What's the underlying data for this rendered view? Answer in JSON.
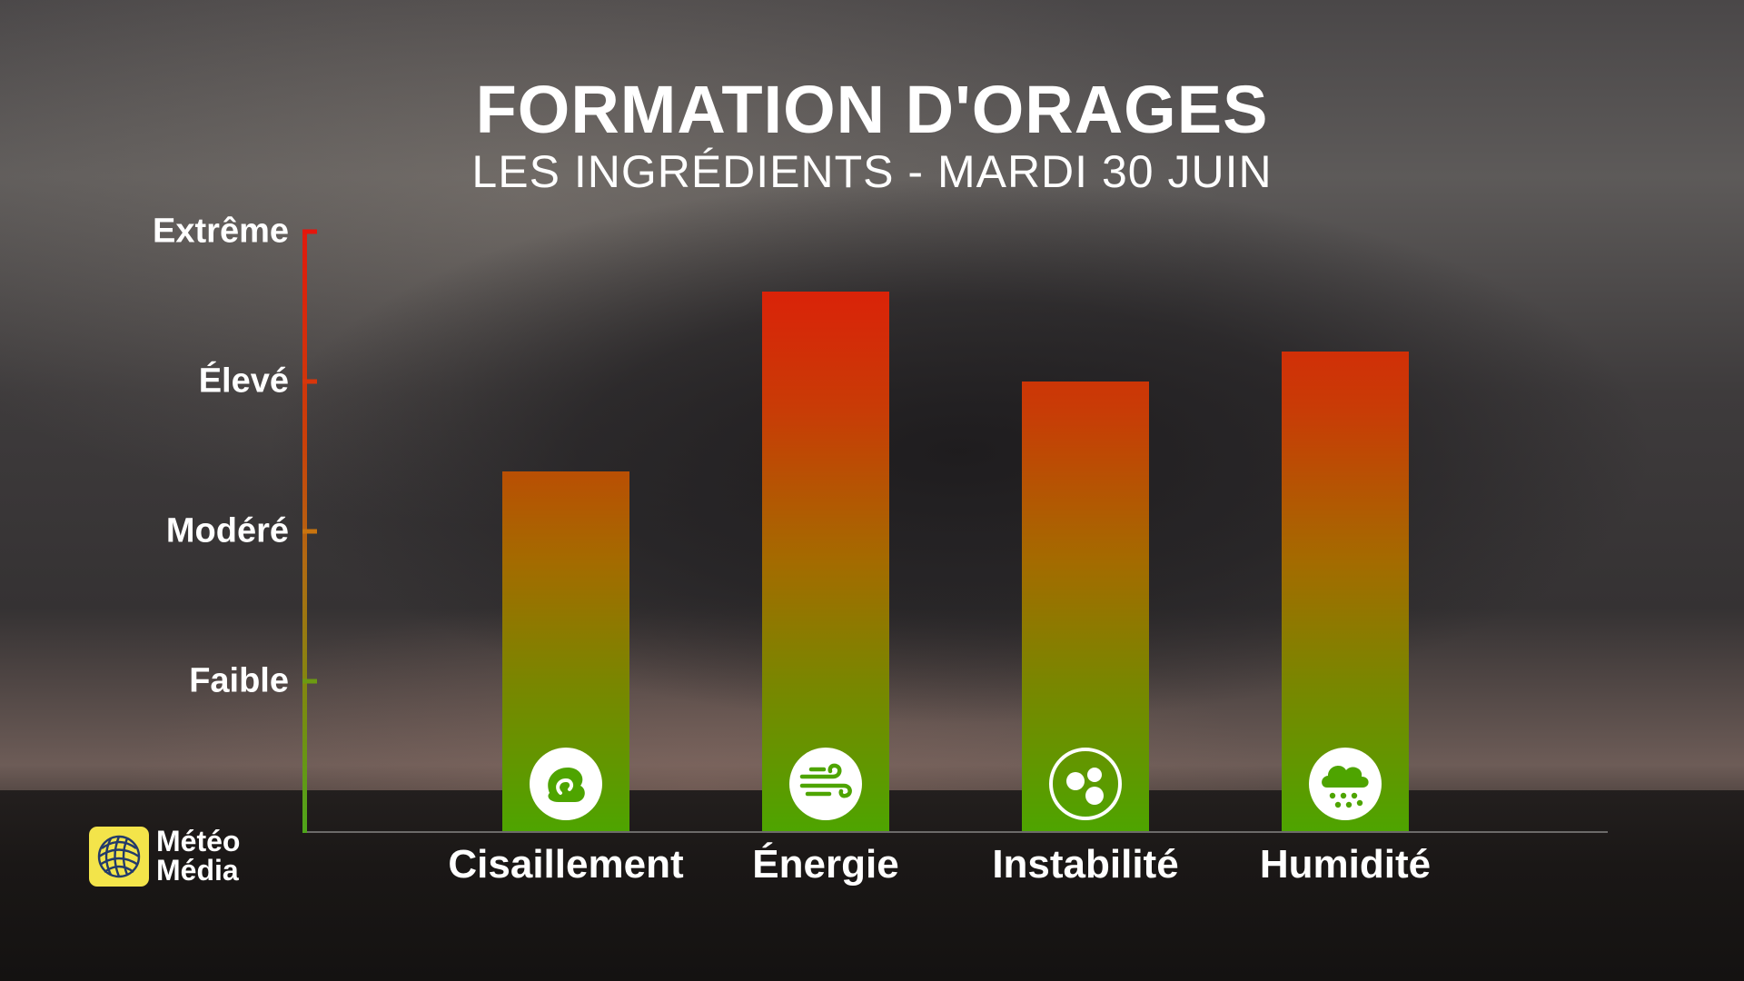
{
  "header": {
    "title": "FORMATION D'ORAGES",
    "subtitle": "LES INGRÉDIENTS - MARDI 30 JUIN"
  },
  "scale": {
    "levels": [
      "Faible",
      "Modéré",
      "Élevé",
      "Extrême"
    ],
    "tick_colors": [
      "#6c9a12",
      "#c9740f",
      "#d8360b",
      "#e5150c"
    ]
  },
  "chart_data": {
    "type": "bar",
    "categories": [
      "Cisaillement",
      "Énergie",
      "Instabilité",
      "Humidité"
    ],
    "values": [
      2.4,
      3.6,
      3.0,
      3.2
    ],
    "icons": [
      "shear-swirl-icon",
      "wind-icon",
      "instability-bubbles-icon",
      "rain-cloud-icon"
    ],
    "y_tick_labels": [
      "Faible",
      "Modéré",
      "Élevé",
      "Extrême"
    ],
    "y_tick_values": [
      1,
      2,
      3,
      4
    ],
    "ylim": [
      0,
      4
    ],
    "grid": false,
    "colors": {
      "top": "#e3160a",
      "bottom": "#4ea400"
    }
  },
  "branding": {
    "logo_text_line1": "Météo",
    "logo_text_line2": "Média",
    "logo_color": "#f3e44a"
  }
}
